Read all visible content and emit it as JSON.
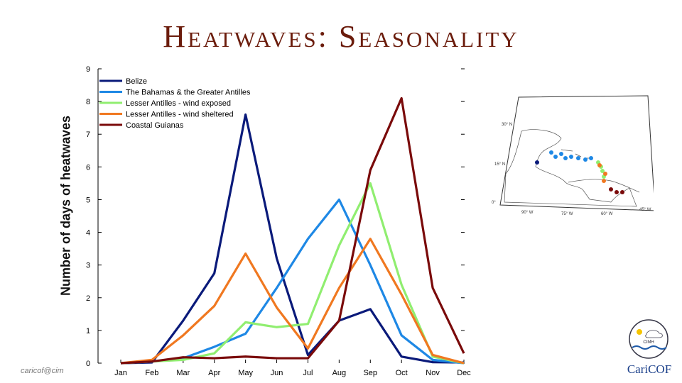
{
  "slide_title": "Heatwaves: Seasonality",
  "footer_text": "caricof@cim",
  "chart_data": {
    "type": "line",
    "title": "",
    "xlabel": "",
    "ylabel": "Number of days of heatwaves",
    "categories": [
      "Jan",
      "Feb",
      "Mar",
      "Apr",
      "May",
      "Jun",
      "Jul",
      "Aug",
      "Sep",
      "Oct",
      "Nov",
      "Dec"
    ],
    "ylim": [
      0,
      9
    ],
    "yticks": [
      "0",
      "1",
      "2",
      "3",
      "4",
      "5",
      "6",
      "7",
      "8",
      "9"
    ],
    "grid": false,
    "legend_position": "top-left",
    "series": [
      {
        "name": "Belize",
        "color": "#0a1a7a",
        "values": [
          0,
          0.02,
          1.3,
          2.75,
          7.6,
          3.2,
          0.25,
          1.3,
          1.65,
          0.2,
          0.03,
          0.02
        ]
      },
      {
        "name": "The Bahamas & the Greater Antilles",
        "color": "#1e88e5",
        "values": [
          0,
          0.05,
          0.15,
          0.5,
          0.9,
          2.3,
          3.8,
          5.0,
          3.0,
          0.85,
          0.1,
          0.0
        ]
      },
      {
        "name": "Lesser Antilles - wind exposed",
        "color": "#90ee70",
        "values": [
          0,
          0.05,
          0.1,
          0.3,
          1.25,
          1.1,
          1.2,
          3.6,
          5.5,
          2.4,
          0.2,
          0.0
        ]
      },
      {
        "name": "Lesser Antilles - wind sheltered",
        "color": "#f07820",
        "values": [
          0,
          0.1,
          0.85,
          1.75,
          3.35,
          1.7,
          0.45,
          2.3,
          3.8,
          2.1,
          0.25,
          0.0
        ]
      },
      {
        "name": "Coastal Guianas",
        "color": "#7a0a0a",
        "values": [
          0,
          0.05,
          0.18,
          0.15,
          0.2,
          0.15,
          0.15,
          1.3,
          5.9,
          8.1,
          2.3,
          0.3
        ]
      }
    ]
  },
  "map": {
    "lat_labels": [
      "30° N",
      "15° N",
      "0°"
    ],
    "lon_labels": [
      "90° W",
      "75° W",
      "60° W",
      "45° W"
    ]
  },
  "logo": {
    "org_text": "CariCOF",
    "badge_text": "CIMH"
  }
}
